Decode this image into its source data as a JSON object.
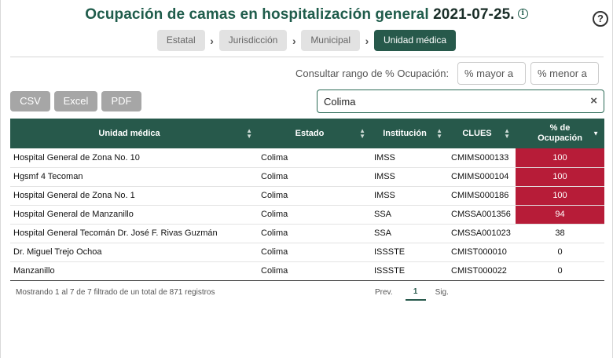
{
  "header": {
    "title": "Ocupación de camas en hospitalización general",
    "date": "2021-07-25.",
    "info_icon": "i",
    "help_icon": "?"
  },
  "breadcrumbs": [
    {
      "label": "Estatal"
    },
    {
      "label": "Jurisdicción"
    },
    {
      "label": "Municipal"
    },
    {
      "label": "Unidad médica"
    }
  ],
  "range": {
    "label": "Consultar rango de % Ocupación:",
    "min_placeholder": "% mayor a",
    "max_placeholder": "% menor a"
  },
  "export": {
    "csv": "CSV",
    "excel": "Excel",
    "pdf": "PDF"
  },
  "search": {
    "value": "Colima",
    "clear": "×"
  },
  "table": {
    "headers": [
      "Unidad médica",
      "Estado",
      "Institución",
      "CLUES",
      "% de Ocupación"
    ],
    "rows": [
      [
        "Hospital General de Zona No. 10",
        "Colima",
        "IMSS",
        "CMIMS000133",
        "100"
      ],
      [
        "Hgsmf 4 Tecoman",
        "Colima",
        "IMSS",
        "CMIMS000104",
        "100"
      ],
      [
        "Hospital General de Zona No. 1",
        "Colima",
        "IMSS",
        "CMIMS000186",
        "100"
      ],
      [
        "Hospital General de Manzanillo",
        "Colima",
        "SSA",
        "CMSSA001356",
        "94"
      ],
      [
        "Hospital General Tecomán Dr. José F. Rivas Guzmán",
        "Colima",
        "SSA",
        "CMSSA001023",
        "38"
      ],
      [
        "Dr. Miguel Trejo Ochoa",
        "Colima",
        "ISSSTE",
        "CMIST000010",
        "0"
      ],
      [
        "Manzanillo",
        "Colima",
        "ISSSTE",
        "CMIST000022",
        "0"
      ]
    ]
  },
  "footer": {
    "info": "Mostrando 1 al 7 de 7 filtrado de un total de 871 registros",
    "prev": "Prev.",
    "page": "1",
    "next": "Sig."
  },
  "colors": {
    "accent": "#27594b",
    "high_occupancy": "#b71c38"
  }
}
